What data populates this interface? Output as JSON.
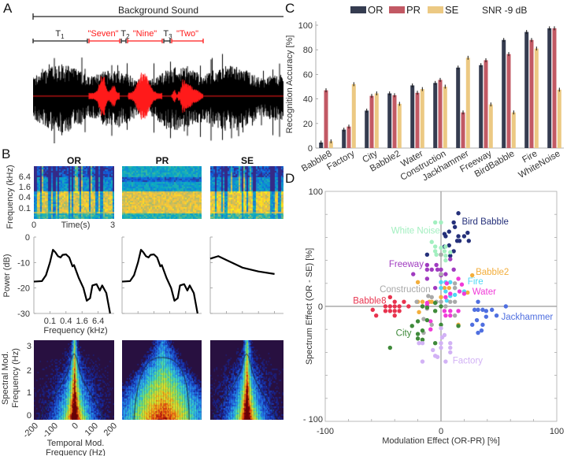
{
  "panels": {
    "a": "A",
    "b": "B",
    "c": "C",
    "d": "D"
  },
  "panel_a": {
    "background_label": "Background Sound",
    "segments": [
      {
        "label": "T",
        "sub": "1",
        "color": "#222222"
      },
      {
        "label": "\"Seven\"",
        "sub": "",
        "color": "#ff1a1a"
      },
      {
        "label": "T",
        "sub": "2",
        "color": "#222222"
      },
      {
        "label": "\"Nine\"",
        "sub": "",
        "color": "#ff1a1a"
      },
      {
        "label": "T",
        "sub": "3",
        "color": "#222222"
      },
      {
        "label": "\"Two\"",
        "sub": "",
        "color": "#ff1a1a"
      }
    ]
  },
  "panel_b": {
    "conditions": [
      "OR",
      "PR",
      "SE"
    ],
    "spectrogram": {
      "ylabel": "Frequency (kHz)",
      "yticks": [
        "6.4",
        "1.6",
        "0.4",
        "0.1"
      ],
      "xticks": [
        "0",
        "3"
      ],
      "xlabel": "Time(s)"
    },
    "power": {
      "ylabel": "Power (dB)",
      "yticks": [
        "0",
        "-10",
        "-20",
        "-30"
      ],
      "xticks": [
        "0.1",
        "0.4",
        "1.6",
        "6.4"
      ],
      "xlabel": "Frequency (kHz)",
      "curves": {
        "OR": [
          [
            0.025,
            -17.5
          ],
          [
            0.05,
            -17.3
          ],
          [
            0.071,
            -15
          ],
          [
            0.1,
            -10
          ],
          [
            0.13,
            -5
          ],
          [
            0.16,
            -6
          ],
          [
            0.2,
            -7.5
          ],
          [
            0.25,
            -8
          ],
          [
            0.3,
            -7
          ],
          [
            0.4,
            -6.8
          ],
          [
            0.53,
            -8
          ],
          [
            0.7,
            -11.5
          ],
          [
            0.8,
            -11
          ],
          [
            1.2,
            -16
          ],
          [
            1.8,
            -20
          ],
          [
            2.4,
            -25
          ],
          [
            3.2,
            -24
          ],
          [
            3.9,
            -19
          ],
          [
            5.6,
            -18.5
          ],
          [
            7.4,
            -21
          ],
          [
            9.1,
            -19
          ],
          [
            13,
            -22
          ],
          [
            18,
            -30
          ]
        ],
        "PR": [
          [
            0.025,
            -17.5
          ],
          [
            0.05,
            -17.3
          ],
          [
            0.071,
            -15
          ],
          [
            0.1,
            -10
          ],
          [
            0.13,
            -5
          ],
          [
            0.16,
            -6
          ],
          [
            0.2,
            -7.5
          ],
          [
            0.25,
            -8
          ],
          [
            0.3,
            -7
          ],
          [
            0.4,
            -6.8
          ],
          [
            0.53,
            -8
          ],
          [
            0.7,
            -11.5
          ],
          [
            0.8,
            -11
          ],
          [
            1.2,
            -16
          ],
          [
            1.8,
            -20
          ],
          [
            2.4,
            -25
          ],
          [
            3.2,
            -24
          ],
          [
            3.9,
            -19
          ],
          [
            5.6,
            -18.5
          ],
          [
            7.4,
            -21
          ],
          [
            9.1,
            -19
          ],
          [
            13,
            -22
          ],
          [
            18,
            -30
          ]
        ],
        "SE": [
          [
            0.025,
            -8.5
          ],
          [
            0.05,
            -7.5
          ],
          [
            0.1,
            -9
          ],
          [
            0.4,
            -12
          ],
          [
            1.6,
            -13.5
          ],
          [
            6.4,
            -14.5
          ],
          [
            14,
            -14
          ],
          [
            16,
            -12.5
          ],
          [
            25.6,
            -16
          ]
        ]
      }
    },
    "modulation": {
      "ylabel_1": "Spectral Mod.",
      "ylabel_2": "Frequency (Hz)",
      "yticks": [
        "3",
        "2",
        "1",
        "0"
      ],
      "xticks": [
        "-200",
        "-100",
        "0",
        "100",
        "200"
      ],
      "xlabel_1": "Temporal Mod.",
      "xlabel_2": "Frequency (Hz)"
    }
  },
  "chart_data": [
    {
      "type": "bar",
      "title": "SNR -9 dB",
      "ylabel": "Recognition Accuracy [%]",
      "xlabel": "",
      "ylim": [
        0,
        100
      ],
      "yticks": [
        "0",
        "20",
        "40",
        "60",
        "80",
        "100"
      ],
      "legend_position": "top",
      "categories": [
        "Babble8",
        "Factory",
        "City",
        "Babble2",
        "Water",
        "Construction",
        "Jackhammer",
        "Freeway",
        "BirdBabble",
        "Fire",
        "WhiteNoise"
      ],
      "series": [
        {
          "name": "OR",
          "color": "#353c50",
          "values": [
            4.5,
            15,
            30.5,
            44.5,
            51,
            53,
            65.5,
            67.5,
            88,
            94.5,
            97.5
          ]
        },
        {
          "name": "PR",
          "color": "#c25964",
          "values": [
            47,
            17.5,
            42.5,
            43,
            45,
            55.5,
            29,
            71.5,
            76.5,
            88,
            97.5
          ]
        },
        {
          "name": "SE",
          "color": "#ecc983",
          "values": [
            5.5,
            52,
            44.5,
            36,
            48,
            50,
            73.5,
            35.5,
            29,
            81,
            47.5
          ]
        }
      ]
    },
    {
      "type": "scatter",
      "xlabel": "Modulation Effect (OR-PR) [%]",
      "ylabel": "Spectrum Effect (OR - SE) [%]",
      "xlim": [
        -100,
        100
      ],
      "ylim": [
        -100,
        100
      ],
      "xticks": [
        "-100",
        "0",
        "100"
      ],
      "yticks": [
        "100",
        "0",
        "- 100"
      ],
      "series": [
        {
          "name": "Bird Babble",
          "color": "#25307a",
          "points": [
            [
              15,
              81
            ],
            [
              11,
              73
            ],
            [
              12,
              69
            ],
            [
              3,
              63
            ],
            [
              7,
              65
            ],
            [
              4,
              61
            ],
            [
              15,
              61
            ],
            [
              20,
              61
            ],
            [
              23,
              64
            ],
            [
              14,
              57
            ],
            [
              16,
              57
            ],
            [
              24,
              57
            ],
            [
              7,
              53
            ],
            [
              3,
              52
            ],
            [
              11,
              48
            ],
            [
              -12,
              45
            ],
            [
              8,
              44
            ]
          ]
        },
        {
          "name": "White Noise",
          "color": "#a3efc0",
          "points": [
            [
              -5,
              73
            ],
            [
              0,
              73
            ],
            [
              -8,
              56
            ],
            [
              -5,
              52
            ],
            [
              0,
              51
            ],
            [
              4,
              52
            ],
            [
              -5,
              48
            ],
            [
              3,
              48
            ],
            [
              8,
              47
            ],
            [
              -4,
              45
            ],
            [
              0,
              45
            ],
            [
              4,
              44
            ],
            [
              4,
              40
            ]
          ]
        },
        {
          "name": "Freeway",
          "color": "#a03bc0",
          "points": [
            [
              -24,
              28
            ],
            [
              -12,
              36
            ],
            [
              -12,
              32
            ],
            [
              -8,
              32
            ],
            [
              -3,
              32
            ],
            [
              0,
              32
            ],
            [
              -4,
              36
            ],
            [
              -12,
              24
            ],
            [
              0,
              28
            ],
            [
              4,
              28
            ],
            [
              11,
              32
            ],
            [
              8,
              41
            ],
            [
              -5,
              16
            ],
            [
              0,
              27
            ]
          ]
        },
        {
          "name": "Babble2",
          "color": "#f3ae3c",
          "points": [
            [
              27,
              27
            ],
            [
              -20,
              21
            ],
            [
              -20,
              4
            ],
            [
              -16,
              4
            ],
            [
              -8,
              4
            ],
            [
              0,
              8
            ],
            [
              3,
              16
            ],
            [
              7,
              16
            ],
            [
              23,
              12
            ],
            [
              -19,
              -5
            ],
            [
              15,
              -16
            ],
            [
              -10,
              4
            ]
          ]
        },
        {
          "name": "Fire",
          "color": "#4fd8f4",
          "points": [
            [
              0,
              21
            ],
            [
              4,
              21
            ],
            [
              8,
              21
            ],
            [
              0,
              16
            ],
            [
              4,
              13
            ],
            [
              12,
              10
            ],
            [
              20,
              13
            ],
            [
              5,
              5
            ],
            [
              8,
              9
            ],
            [
              12,
              16
            ]
          ]
        },
        {
          "name": "Water",
          "color": "#f03ad8",
          "points": [
            [
              15,
              24
            ],
            [
              18,
              19
            ],
            [
              5,
              20
            ],
            [
              16,
              13
            ],
            [
              20,
              11
            ],
            [
              4,
              8
            ],
            [
              8,
              11
            ],
            [
              -12,
              3
            ],
            [
              3,
              -4
            ],
            [
              8,
              -4
            ],
            [
              4,
              -8
            ],
            [
              8,
              -8
            ],
            [
              15,
              -4
            ],
            [
              -9,
              -20
            ],
            [
              -9,
              -13
            ],
            [
              -12,
              1
            ]
          ]
        },
        {
          "name": "Construction",
          "color": "#a9a9a9",
          "points": [
            [
              -11,
              9
            ],
            [
              -8,
              8
            ],
            [
              -21,
              4
            ],
            [
              -16,
              0
            ],
            [
              -12,
              -2
            ],
            [
              -4,
              4
            ],
            [
              0,
              4
            ],
            [
              8,
              4
            ],
            [
              12,
              4
            ],
            [
              4,
              0
            ],
            [
              12,
              20
            ],
            [
              12,
              16
            ],
            [
              -15,
              -11
            ],
            [
              -8,
              -16
            ],
            [
              -15,
              -23
            ],
            [
              0,
              45
            ],
            [
              0,
              28
            ],
            [
              12,
              -8
            ]
          ]
        },
        {
          "name": "Babble8",
          "color": "#e8334e",
          "points": [
            [
              -59,
              -3
            ],
            [
              -56,
              -8
            ],
            [
              -48,
              0
            ],
            [
              -44,
              0
            ],
            [
              -40,
              0
            ],
            [
              -36,
              0
            ],
            [
              -28,
              0
            ],
            [
              -48,
              -4
            ],
            [
              -44,
              -4
            ],
            [
              -40,
              -4
            ],
            [
              -36,
              -4
            ],
            [
              -44,
              8
            ],
            [
              -40,
              4
            ],
            [
              -32,
              4
            ],
            [
              -40,
              -8
            ]
          ]
        },
        {
          "name": "Jackhammer",
          "color": "#4f6fe0",
          "points": [
            [
              32,
              4
            ],
            [
              29,
              -3
            ],
            [
              32,
              -3
            ],
            [
              36,
              -3
            ],
            [
              39,
              -4
            ],
            [
              44,
              -3
            ],
            [
              56,
              0
            ],
            [
              48,
              -8
            ],
            [
              39,
              -9
            ],
            [
              31,
              -12
            ],
            [
              27,
              -16
            ],
            [
              36,
              -16
            ],
            [
              32,
              -23
            ],
            [
              35,
              -21
            ]
          ]
        },
        {
          "name": "City",
          "color": "#3f8a3a",
          "points": [
            [
              -44,
              -36
            ],
            [
              -25,
              -17
            ],
            [
              -20,
              -13
            ],
            [
              -16,
              0
            ],
            [
              -12,
              -1
            ],
            [
              -5,
              3
            ],
            [
              0,
              0
            ],
            [
              -5,
              -4
            ],
            [
              -12,
              -12
            ],
            [
              -20,
              -24
            ],
            [
              -20,
              -28
            ],
            [
              -16,
              -29
            ],
            [
              -16,
              -21
            ],
            [
              -5,
              -32
            ],
            [
              0,
              -16
            ],
            [
              15,
              -17
            ]
          ]
        },
        {
          "name": "Factory",
          "color": "#d2b2f5",
          "points": [
            [
              -16,
              -48
            ],
            [
              -19,
              -32
            ],
            [
              -16,
              -32
            ],
            [
              -7,
              -38
            ],
            [
              -5,
              -43
            ],
            [
              -3,
              -44
            ],
            [
              0,
              -36
            ],
            [
              0,
              -32
            ],
            [
              3,
              -25
            ],
            [
              8,
              -32
            ],
            [
              8,
              -36
            ],
            [
              8,
              -40
            ],
            [
              4,
              -48
            ],
            [
              0,
              -19
            ],
            [
              1,
              -27
            ]
          ]
        }
      ]
    }
  ]
}
